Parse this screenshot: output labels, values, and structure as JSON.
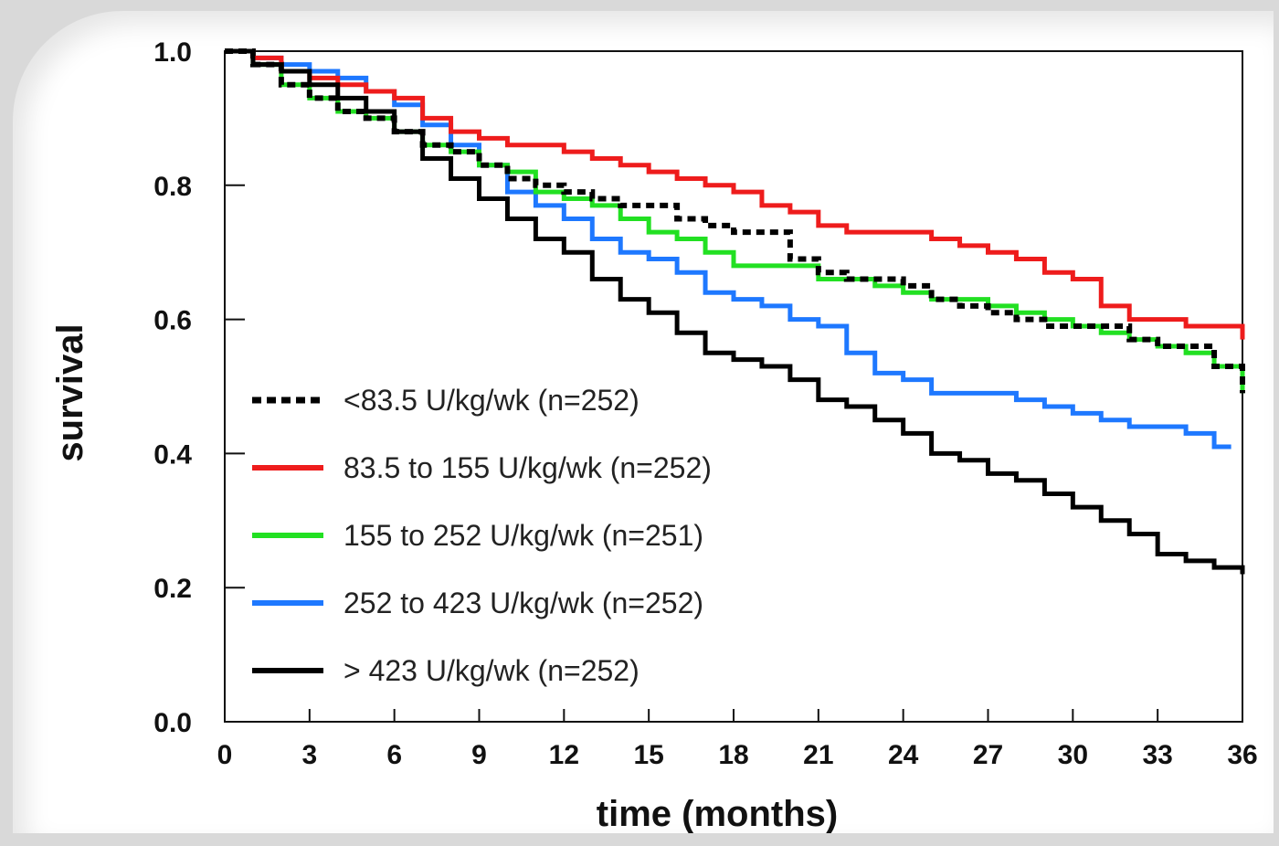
{
  "chart_data": {
    "type": "line",
    "title": "",
    "xlabel": "time (months)",
    "ylabel": "survival",
    "xlim": [
      0,
      36
    ],
    "ylim": [
      0,
      1
    ],
    "x_ticks": [
      "0",
      "3",
      "6",
      "9",
      "12",
      "15",
      "18",
      "21",
      "24",
      "27",
      "30",
      "33",
      "36"
    ],
    "y_ticks": [
      "0.0",
      "0.2",
      "0.4",
      "0.6",
      "0.8",
      "1.0"
    ],
    "grid": false,
    "legend_position": "bottom-left",
    "series": [
      {
        "name": "<83.5 U/kg/wk (n=252)",
        "color": "#000000",
        "dash": "dotted",
        "x": [
          0,
          1,
          2,
          3,
          4,
          5,
          6,
          7,
          8,
          9,
          10,
          11,
          12,
          13,
          14,
          15,
          16,
          17,
          18,
          19,
          20,
          21,
          22,
          23,
          24,
          25,
          26,
          27,
          28,
          29,
          30,
          31,
          32,
          33,
          34,
          35,
          36
        ],
        "y": [
          1.0,
          0.98,
          0.95,
          0.93,
          0.91,
          0.9,
          0.88,
          0.86,
          0.85,
          0.83,
          0.81,
          0.8,
          0.79,
          0.78,
          0.77,
          0.77,
          0.75,
          0.74,
          0.73,
          0.73,
          0.69,
          0.67,
          0.66,
          0.66,
          0.65,
          0.63,
          0.62,
          0.61,
          0.6,
          0.59,
          0.59,
          0.59,
          0.57,
          0.56,
          0.56,
          0.53,
          0.49
        ]
      },
      {
        "name": "83.5 to 155 U/kg/wk (n=252)",
        "color": "#ee1c1c",
        "dash": "solid",
        "x": [
          0,
          1,
          2,
          3,
          4,
          5,
          6,
          7,
          8,
          9,
          10,
          11,
          12,
          13,
          14,
          15,
          16,
          17,
          18,
          19,
          20,
          21,
          22,
          23,
          24,
          25,
          26,
          27,
          28,
          29,
          30,
          31,
          32,
          33,
          34,
          35,
          36
        ],
        "y": [
          1.0,
          0.99,
          0.97,
          0.96,
          0.95,
          0.94,
          0.93,
          0.9,
          0.88,
          0.87,
          0.86,
          0.86,
          0.85,
          0.84,
          0.83,
          0.82,
          0.81,
          0.8,
          0.79,
          0.77,
          0.76,
          0.74,
          0.73,
          0.73,
          0.73,
          0.72,
          0.71,
          0.7,
          0.69,
          0.67,
          0.66,
          0.62,
          0.6,
          0.6,
          0.59,
          0.59,
          0.57
        ]
      },
      {
        "name": "155 to 252 U/kg/wk (n=251)",
        "color": "#22e022",
        "dash": "solid",
        "x": [
          0,
          1,
          2,
          3,
          4,
          5,
          6,
          7,
          8,
          9,
          10,
          11,
          12,
          13,
          14,
          15,
          16,
          17,
          18,
          19,
          20,
          21,
          22,
          23,
          24,
          25,
          26,
          27,
          28,
          29,
          30,
          31,
          32,
          33,
          34,
          35,
          36
        ],
        "y": [
          1.0,
          0.98,
          0.95,
          0.93,
          0.91,
          0.9,
          0.88,
          0.86,
          0.85,
          0.83,
          0.82,
          0.79,
          0.78,
          0.77,
          0.75,
          0.73,
          0.72,
          0.7,
          0.68,
          0.68,
          0.68,
          0.66,
          0.66,
          0.65,
          0.64,
          0.63,
          0.63,
          0.62,
          0.61,
          0.6,
          0.59,
          0.58,
          0.57,
          0.56,
          0.55,
          0.53,
          0.49
        ]
      },
      {
        "name": "252 to 423 U/kg/wk (n=252)",
        "color": "#1e78ff",
        "dash": "solid",
        "x": [
          0,
          1,
          2,
          3,
          4,
          5,
          6,
          7,
          8,
          9,
          10,
          11,
          12,
          13,
          14,
          15,
          16,
          17,
          18,
          19,
          20,
          21,
          22,
          23,
          24,
          25,
          26,
          27,
          28,
          29,
          30,
          31,
          32,
          33,
          34,
          35,
          35.6
        ],
        "y": [
          1.0,
          0.99,
          0.98,
          0.97,
          0.96,
          0.94,
          0.92,
          0.89,
          0.86,
          0.83,
          0.79,
          0.77,
          0.75,
          0.72,
          0.7,
          0.69,
          0.67,
          0.64,
          0.63,
          0.62,
          0.6,
          0.59,
          0.55,
          0.52,
          0.51,
          0.49,
          0.49,
          0.49,
          0.48,
          0.47,
          0.46,
          0.45,
          0.44,
          0.44,
          0.43,
          0.41,
          0.41
        ]
      },
      {
        "name": "> 423 U/kg/wk (n=252)",
        "color": "#000000",
        "dash": "solid",
        "x": [
          0,
          1,
          2,
          3,
          4,
          5,
          6,
          7,
          8,
          9,
          10,
          11,
          12,
          13,
          14,
          15,
          16,
          17,
          18,
          19,
          20,
          21,
          22,
          23,
          24,
          25,
          26,
          27,
          28,
          29,
          30,
          31,
          32,
          33,
          34,
          35,
          36
        ],
        "y": [
          1.0,
          0.98,
          0.97,
          0.95,
          0.93,
          0.91,
          0.88,
          0.84,
          0.81,
          0.78,
          0.75,
          0.72,
          0.7,
          0.66,
          0.63,
          0.61,
          0.58,
          0.55,
          0.54,
          0.53,
          0.51,
          0.48,
          0.47,
          0.45,
          0.43,
          0.4,
          0.39,
          0.37,
          0.36,
          0.34,
          0.32,
          0.3,
          0.28,
          0.25,
          0.24,
          0.23,
          0.22
        ]
      }
    ]
  }
}
